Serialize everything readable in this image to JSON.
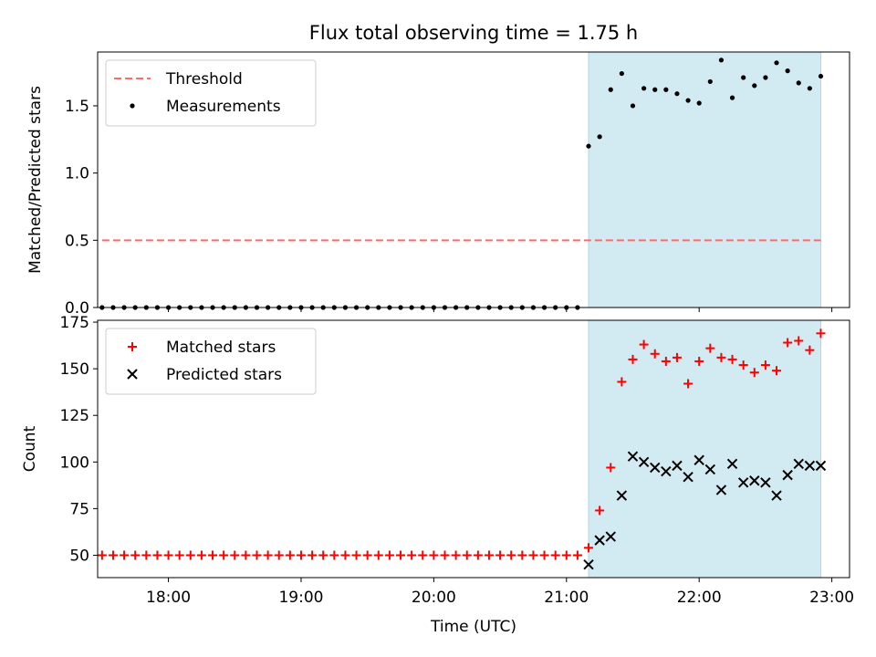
{
  "figure": {
    "title": "Flux total observing time = 1.75 h",
    "xlabel": "Time (UTC)"
  },
  "chart_data": [
    {
      "type": "scatter",
      "ylabel": "Matched/Predicted stars",
      "xlim": [
        "17:28",
        "23:08"
      ],
      "ylim": [
        0,
        1.9
      ],
      "yticks": [
        0.0,
        0.5,
        1.0,
        1.5
      ],
      "ytick_labels": [
        "0.0",
        "0.5",
        "1.0",
        "1.5"
      ],
      "shaded_span": {
        "start": "21:10",
        "end": "22:55",
        "color": "#add8e6"
      },
      "legend_location": "upper-left",
      "threshold": {
        "name": "Threshold",
        "y": 0.5,
        "x_start": "17:30",
        "x_end": "22:55",
        "color": "#ff6b6b",
        "style": "dashed"
      },
      "series": [
        {
          "name": "Measurements",
          "marker": "dot",
          "color": "#000000",
          "x": [
            "17:30",
            "17:35",
            "17:40",
            "17:45",
            "17:50",
            "17:55",
            "18:00",
            "18:05",
            "18:10",
            "18:15",
            "18:20",
            "18:25",
            "18:30",
            "18:35",
            "18:40",
            "18:45",
            "18:50",
            "18:55",
            "19:00",
            "19:05",
            "19:10",
            "19:15",
            "19:20",
            "19:25",
            "19:30",
            "19:35",
            "19:40",
            "19:45",
            "19:50",
            "19:55",
            "20:00",
            "20:05",
            "20:10",
            "20:15",
            "20:20",
            "20:25",
            "20:30",
            "20:35",
            "20:40",
            "20:45",
            "20:50",
            "20:55",
            "21:00",
            "21:05",
            "21:10",
            "21:15",
            "21:20",
            "21:25",
            "21:30",
            "21:35",
            "21:40",
            "21:45",
            "21:50",
            "21:55",
            "22:00",
            "22:05",
            "22:10",
            "22:15",
            "22:20",
            "22:25",
            "22:30",
            "22:35",
            "22:40",
            "22:45",
            "22:50",
            "22:55"
          ],
          "y": [
            0,
            0,
            0,
            0,
            0,
            0,
            0,
            0,
            0,
            0,
            0,
            0,
            0,
            0,
            0,
            0,
            0,
            0,
            0,
            0,
            0,
            0,
            0,
            0,
            0,
            0,
            0,
            0,
            0,
            0,
            0,
            0,
            0,
            0,
            0,
            0,
            0,
            0,
            0,
            0,
            0,
            0,
            0,
            0,
            1.2,
            1.27,
            1.62,
            1.74,
            1.5,
            1.63,
            1.62,
            1.62,
            1.59,
            1.54,
            1.52,
            1.68,
            1.84,
            1.56,
            1.71,
            1.65,
            1.71,
            1.82,
            1.76,
            1.67,
            1.63,
            1.72
          ]
        }
      ]
    },
    {
      "type": "scatter",
      "ylabel": "Count",
      "xlim": [
        "17:28",
        "23:08"
      ],
      "ylim": [
        38,
        176
      ],
      "yticks": [
        50,
        75,
        100,
        125,
        150,
        175
      ],
      "ytick_labels": [
        "50",
        "75",
        "100",
        "125",
        "150",
        "175"
      ],
      "xticks": [
        "18:00",
        "19:00",
        "20:00",
        "21:00",
        "22:00",
        "23:00"
      ],
      "xtick_labels": [
        "18:00",
        "19:00",
        "20:00",
        "21:00",
        "22:00",
        "23:00"
      ],
      "shaded_span": {
        "start": "21:10",
        "end": "22:55",
        "color": "#add8e6"
      },
      "legend_location": "upper-left",
      "series": [
        {
          "name": "Matched stars",
          "marker": "plus",
          "color": "#ff0000",
          "x": [
            "17:30",
            "17:35",
            "17:40",
            "17:45",
            "17:50",
            "17:55",
            "18:00",
            "18:05",
            "18:10",
            "18:15",
            "18:20",
            "18:25",
            "18:30",
            "18:35",
            "18:40",
            "18:45",
            "18:50",
            "18:55",
            "19:00",
            "19:05",
            "19:10",
            "19:15",
            "19:20",
            "19:25",
            "19:30",
            "19:35",
            "19:40",
            "19:45",
            "19:50",
            "19:55",
            "20:00",
            "20:05",
            "20:10",
            "20:15",
            "20:20",
            "20:25",
            "20:30",
            "20:35",
            "20:40",
            "20:45",
            "20:50",
            "20:55",
            "21:00",
            "21:05",
            "21:10",
            "21:15",
            "21:20",
            "21:25",
            "21:30",
            "21:35",
            "21:40",
            "21:45",
            "21:50",
            "21:55",
            "22:00",
            "22:05",
            "22:10",
            "22:15",
            "22:20",
            "22:25",
            "22:30",
            "22:35",
            "22:40",
            "22:45",
            "22:50",
            "22:55"
          ],
          "y": [
            50,
            50,
            50,
            50,
            50,
            50,
            50,
            50,
            50,
            50,
            50,
            50,
            50,
            50,
            50,
            50,
            50,
            50,
            50,
            50,
            50,
            50,
            50,
            50,
            50,
            50,
            50,
            50,
            50,
            50,
            50,
            50,
            50,
            50,
            50,
            50,
            50,
            50,
            50,
            50,
            50,
            50,
            50,
            50,
            54,
            74,
            97,
            143,
            155,
            163,
            158,
            154,
            156,
            142,
            154,
            161,
            156,
            155,
            152,
            148,
            152,
            149,
            164,
            165,
            160,
            169
          ]
        },
        {
          "name": "Predicted stars",
          "marker": "x",
          "color": "#000000",
          "x": [
            "21:10",
            "21:15",
            "21:20",
            "21:25",
            "21:30",
            "21:35",
            "21:40",
            "21:45",
            "21:50",
            "21:55",
            "22:00",
            "22:05",
            "22:10",
            "22:15",
            "22:20",
            "22:25",
            "22:30",
            "22:35",
            "22:40",
            "22:45",
            "22:50",
            "22:55"
          ],
          "y": [
            45,
            58,
            60,
            82,
            103,
            100,
            97,
            95,
            98,
            92,
            101,
            96,
            85,
            99,
            89,
            90,
            89,
            82,
            93,
            99,
            98,
            98
          ]
        }
      ]
    }
  ]
}
